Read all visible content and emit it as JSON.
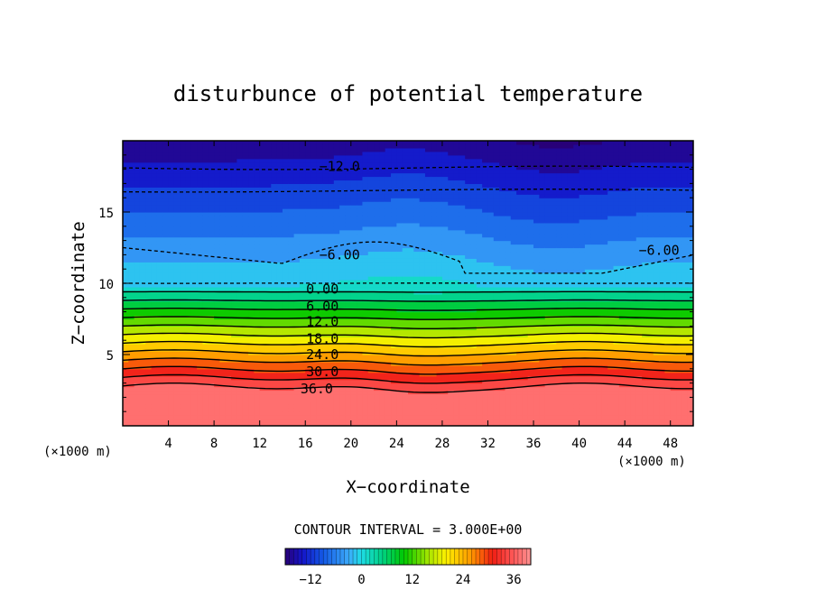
{
  "chart_data": {
    "type": "contour",
    "title": "disturbunce of potential temperature",
    "xlabel": "X−coordinate",
    "ylabel": "Z−coordinate",
    "x_unit_left": "(×1000 m)",
    "x_unit_right": "(×1000 m)",
    "xlim": [
      0,
      50
    ],
    "ylim": [
      0,
      20
    ],
    "xticks": [
      4,
      8,
      12,
      16,
      20,
      24,
      28,
      32,
      36,
      40,
      44,
      48
    ],
    "yticks": [
      5,
      10,
      15
    ],
    "contour_interval_text": "CONTOUR INTERVAL = 3.000E+00",
    "contour_interval": 3,
    "field_range": [
      -18,
      40
    ],
    "contour_labels": [
      {
        "text": "−12.0",
        "x": 19,
        "z": 18.2
      },
      {
        "text": "−6.00",
        "x": 19,
        "z": 12.0
      },
      {
        "text": "−6.00",
        "x": 47,
        "z": 12.3
      },
      {
        "text": "0.00",
        "x": 17.5,
        "z": 9.6
      },
      {
        "text": "6.00",
        "x": 17.5,
        "z": 8.4
      },
      {
        "text": "12.0",
        "x": 17.5,
        "z": 7.3
      },
      {
        "text": "18.0",
        "x": 17.5,
        "z": 6.1
      },
      {
        "text": "24.0",
        "x": 17.5,
        "z": 5.0
      },
      {
        "text": "30.0",
        "x": 17.5,
        "z": 3.8
      },
      {
        "text": "36.0",
        "x": 17,
        "z": 2.6
      }
    ],
    "colorbar": {
      "ticks": [
        "−12",
        "0",
        "12",
        "24",
        "36"
      ],
      "tick_values": [
        -12,
        0,
        12,
        24,
        36
      ]
    }
  }
}
